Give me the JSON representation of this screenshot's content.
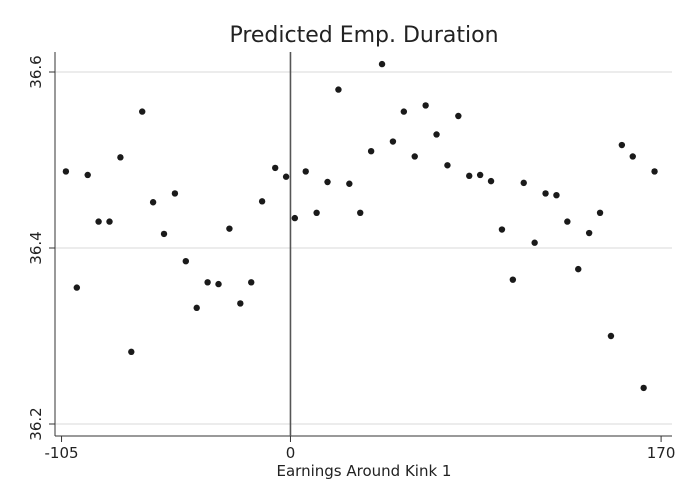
{
  "chart_data": {
    "type": "scatter",
    "title": "Predicted Emp. Duration",
    "xlabel": "Earnings Around Kink 1",
    "ylabel": "",
    "xlim": [
      -108,
      175
    ],
    "ylim": [
      36.2,
      36.6
    ],
    "x_ticks": [
      -105,
      0,
      170
    ],
    "x_tick_labels": [
      "-105",
      "0",
      "170"
    ],
    "y_ticks": [
      36.2,
      36.4,
      36.6
    ],
    "y_tick_labels": [
      "36.2",
      "36.4",
      "36.6"
    ],
    "grid": true,
    "grid_axis": "y",
    "vertical_reference_line_x": 0,
    "legend": "none",
    "colors": {
      "points": "#1a1a1a",
      "grid": "#d9d9d9",
      "axis": "#333333",
      "reference_line": "#555555"
    },
    "points": [
      {
        "x": -103,
        "y": 36.487
      },
      {
        "x": -98,
        "y": 36.355
      },
      {
        "x": -93,
        "y": 36.483
      },
      {
        "x": -88,
        "y": 36.43
      },
      {
        "x": -83,
        "y": 36.43
      },
      {
        "x": -78,
        "y": 36.503
      },
      {
        "x": -73,
        "y": 36.282
      },
      {
        "x": -68,
        "y": 36.555
      },
      {
        "x": -63,
        "y": 36.452
      },
      {
        "x": -58,
        "y": 36.416
      },
      {
        "x": -53,
        "y": 36.462
      },
      {
        "x": -48,
        "y": 36.385
      },
      {
        "x": -43,
        "y": 36.332
      },
      {
        "x": -38,
        "y": 36.361
      },
      {
        "x": -33,
        "y": 36.359
      },
      {
        "x": -28,
        "y": 36.422
      },
      {
        "x": -23,
        "y": 36.337
      },
      {
        "x": -18,
        "y": 36.361
      },
      {
        "x": -13,
        "y": 36.453
      },
      {
        "x": -7,
        "y": 36.491
      },
      {
        "x": -2,
        "y": 36.481
      },
      {
        "x": 2,
        "y": 36.434
      },
      {
        "x": 7,
        "y": 36.487
      },
      {
        "x": 12,
        "y": 36.44
      },
      {
        "x": 17,
        "y": 36.475
      },
      {
        "x": 22,
        "y": 36.58
      },
      {
        "x": 27,
        "y": 36.473
      },
      {
        "x": 32,
        "y": 36.44
      },
      {
        "x": 37,
        "y": 36.51
      },
      {
        "x": 42,
        "y": 36.609
      },
      {
        "x": 47,
        "y": 36.521
      },
      {
        "x": 52,
        "y": 36.555
      },
      {
        "x": 57,
        "y": 36.504
      },
      {
        "x": 62,
        "y": 36.562
      },
      {
        "x": 67,
        "y": 36.529
      },
      {
        "x": 72,
        "y": 36.494
      },
      {
        "x": 77,
        "y": 36.55
      },
      {
        "x": 82,
        "y": 36.482
      },
      {
        "x": 87,
        "y": 36.483
      },
      {
        "x": 92,
        "y": 36.476
      },
      {
        "x": 97,
        "y": 36.421
      },
      {
        "x": 102,
        "y": 36.364
      },
      {
        "x": 107,
        "y": 36.474
      },
      {
        "x": 112,
        "y": 36.406
      },
      {
        "x": 117,
        "y": 36.462
      },
      {
        "x": 122,
        "y": 36.46
      },
      {
        "x": 127,
        "y": 36.43
      },
      {
        "x": 132,
        "y": 36.376
      },
      {
        "x": 137,
        "y": 36.417
      },
      {
        "x": 142,
        "y": 36.44
      },
      {
        "x": 147,
        "y": 36.3
      },
      {
        "x": 152,
        "y": 36.517
      },
      {
        "x": 157,
        "y": 36.504
      },
      {
        "x": 162,
        "y": 36.241
      },
      {
        "x": 167,
        "y": 36.487
      }
    ]
  }
}
